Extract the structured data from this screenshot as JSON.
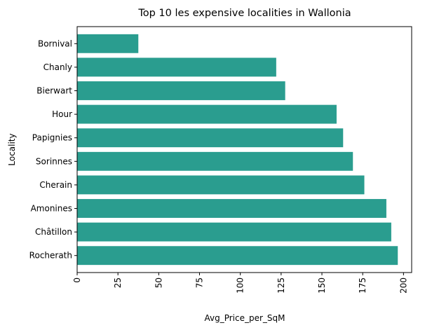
{
  "chart_data": {
    "type": "bar",
    "orientation": "horizontal",
    "title": "Top 10 les expensive localities in Wallonia",
    "xlabel": "Avg_Price_per_SqM",
    "ylabel": "Locality",
    "categories": [
      "Bornival",
      "Chanly",
      "Bierwart",
      "Hour",
      "Papignies",
      "Sorinnes",
      "Cherain",
      "Amonines",
      "Châtillon",
      "Rocherath"
    ],
    "values": [
      37.5,
      122,
      127.5,
      159,
      163,
      169,
      176,
      189.5,
      192.5,
      196.5
    ],
    "xlim": [
      0,
      205
    ],
    "xticks": [
      0,
      25,
      50,
      75,
      100,
      125,
      150,
      175,
      200
    ],
    "xtick_rotation": 90,
    "grid": false,
    "legend": "none",
    "bar_color": "#2a9d8f"
  }
}
